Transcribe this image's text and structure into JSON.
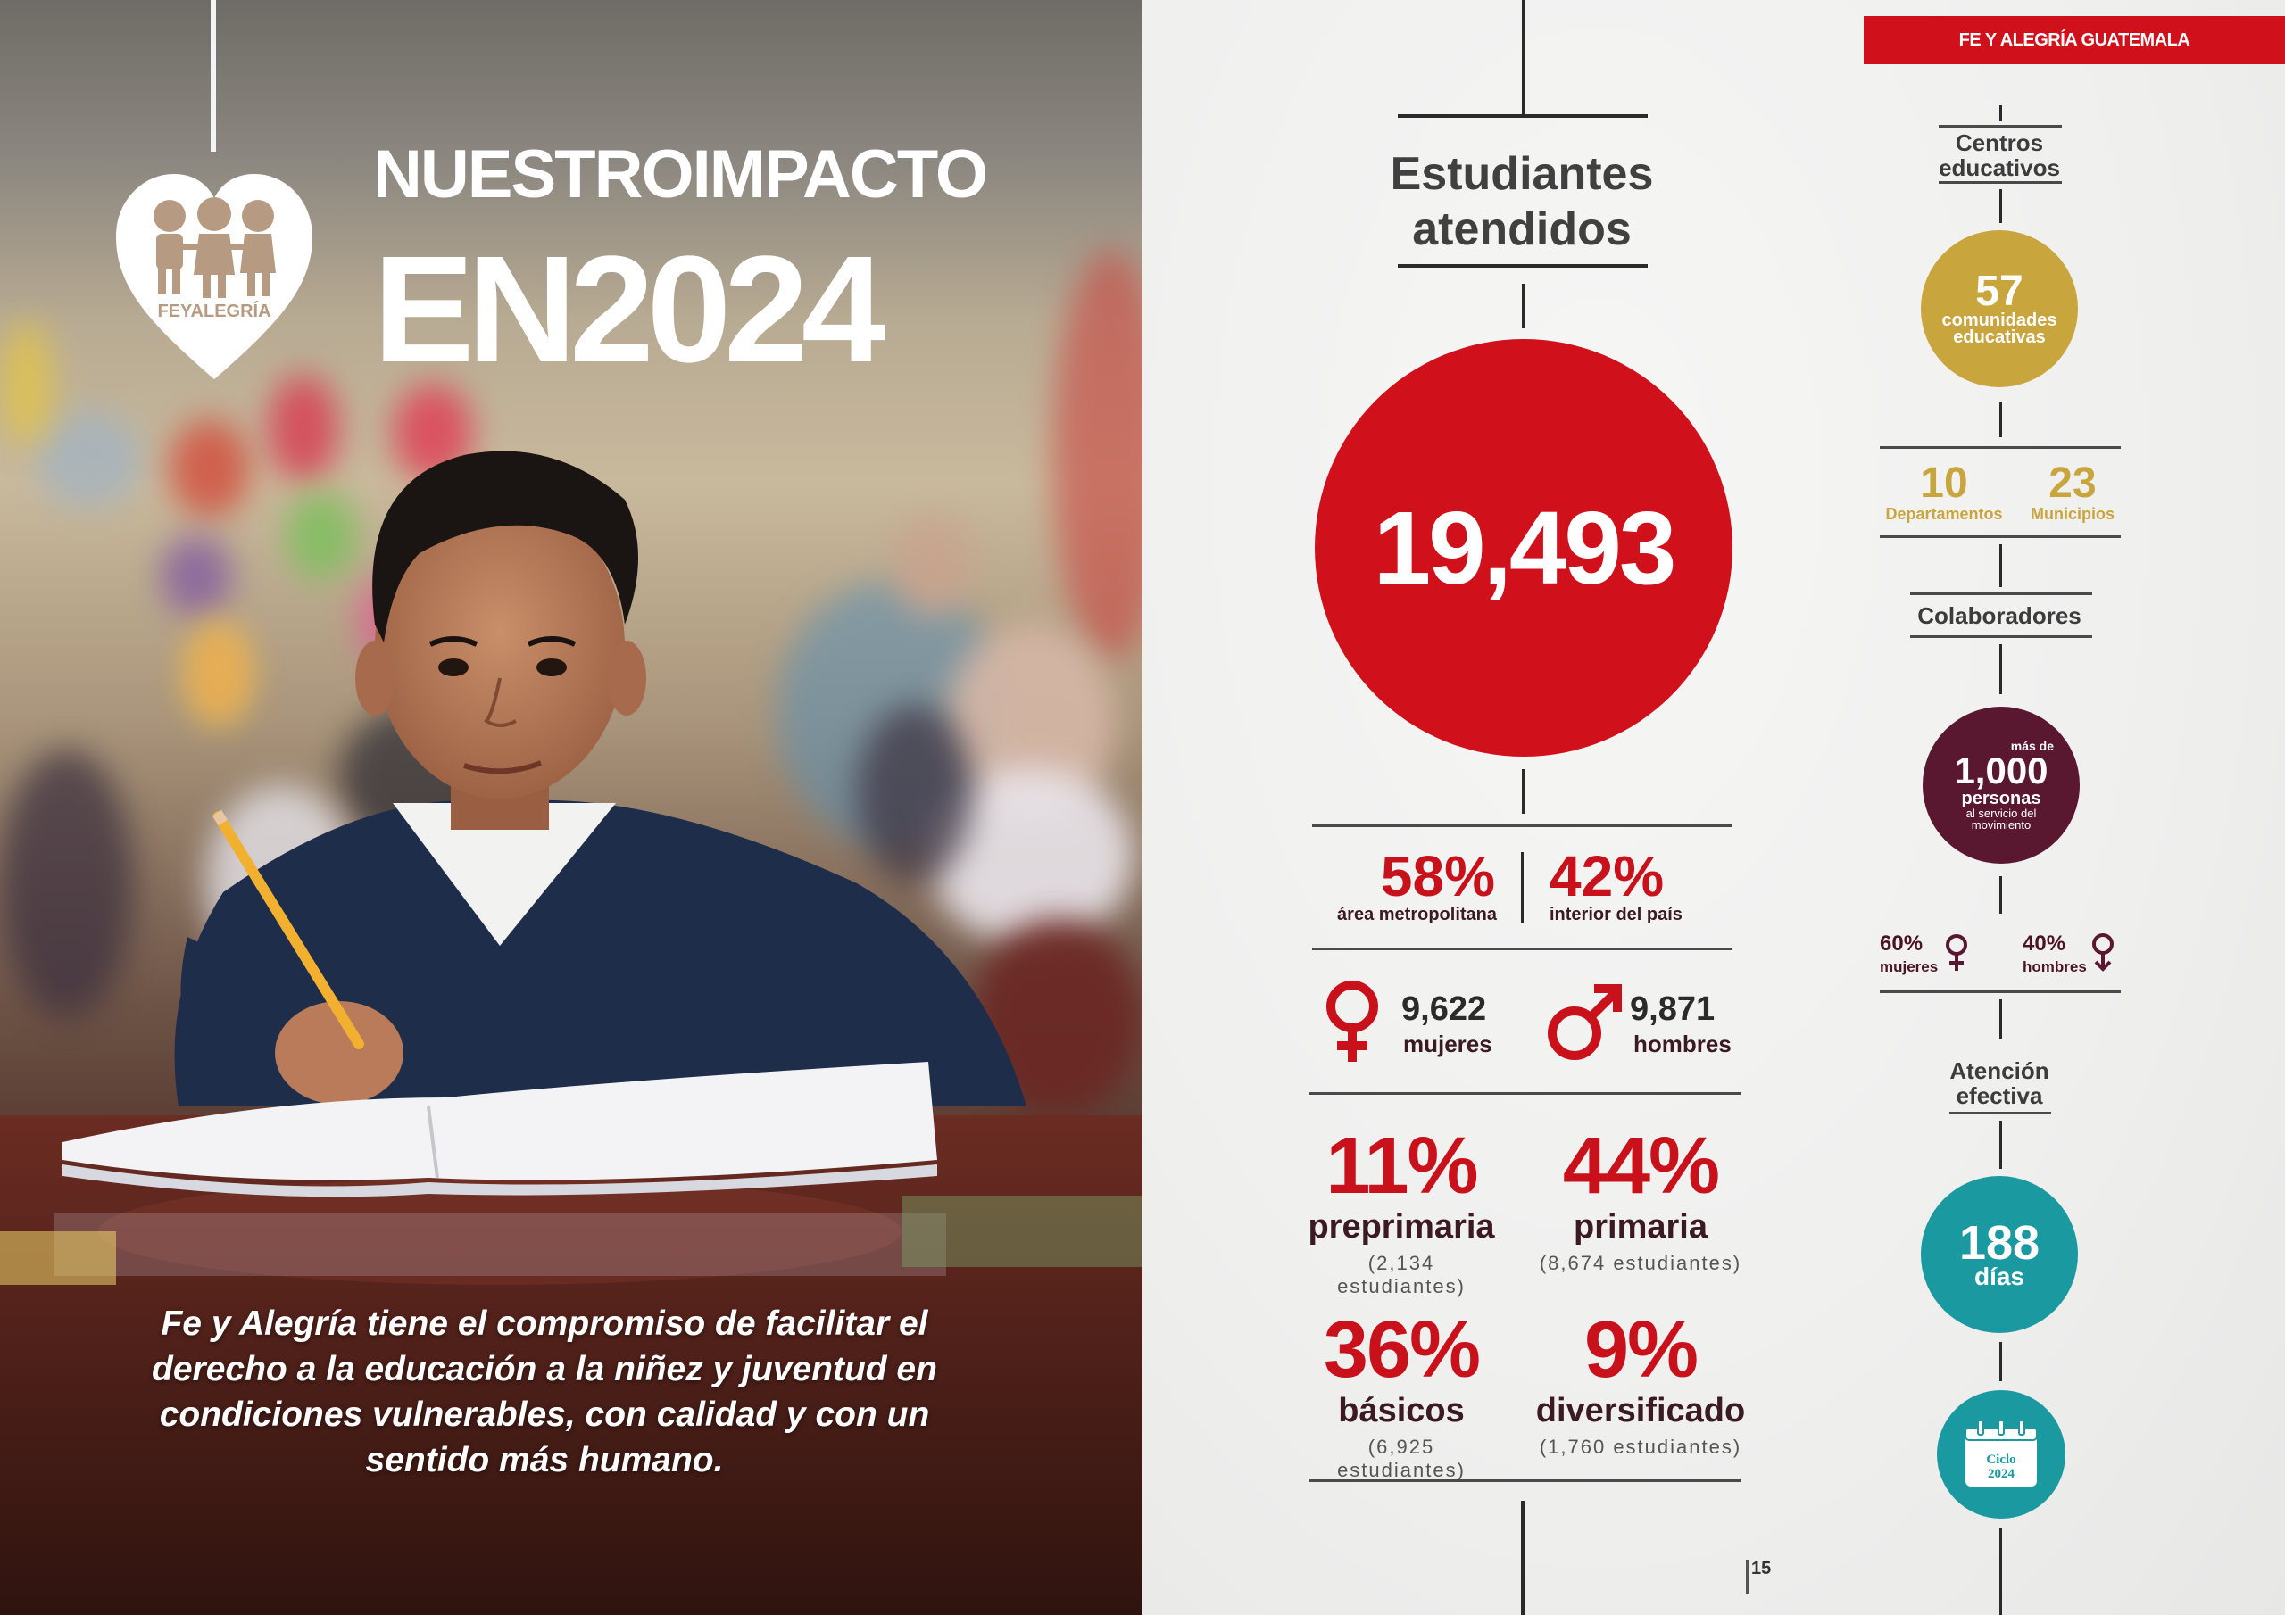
{
  "brand": "FE Y ALEGRÍA GUATEMALA",
  "logo_text": "FEYALEGRÍA",
  "title": {
    "line1": "NUESTROIMPACTO",
    "line2": "EN2024"
  },
  "quote": "Fe y Alegría tiene el compromiso de facilitar el derecho a la educación a la niñez y juventud en condiciones vulnerables, con calidad y con un sentido más humano.",
  "students": {
    "header": [
      "Estudiantes",
      "atendidos"
    ],
    "total": "19,493",
    "metro_pct": "58%",
    "metro_label": "área metropolitana",
    "interior_pct": "42%",
    "interior_label": "interior del país",
    "women_count": "9,622",
    "women_label": "mujeres",
    "men_count": "9,871",
    "men_label": "hombres",
    "levels": [
      {
        "pct": "11%",
        "name": "preprimaria",
        "count": "(2,134 estudiantes)"
      },
      {
        "pct": "44%",
        "name": "primaria",
        "count": "(8,674 estudiantes)"
      },
      {
        "pct": "36%",
        "name": "básicos",
        "count": "(6,925 estudiantes)"
      },
      {
        "pct": "9%",
        "name": "diversificado",
        "count": "(1,760 estudiantes)"
      }
    ]
  },
  "centers": {
    "header": [
      "Centros",
      "educativos"
    ],
    "number": "57",
    "label1": "comunidades",
    "label2": "educativas",
    "departments_num": "10",
    "departments_label": "Departamentos",
    "municipalities_num": "23",
    "municipalities_label": "Municipios"
  },
  "collaborators": {
    "header": "Colaboradores",
    "prefix": "más de",
    "number": "1,000",
    "label": "personas",
    "sub1": "al servicio del",
    "sub2": "movimiento",
    "women_pct": "60%",
    "women_label": "mujeres",
    "men_pct": "40%",
    "men_label": "hombres"
  },
  "attention": {
    "header": [
      "Atención",
      "efectiva"
    ],
    "number": "188",
    "label": "días",
    "cycle_word": "Ciclo",
    "cycle_year": "2024"
  },
  "page_number": "15",
  "colors": {
    "red": "#d0111c",
    "gold": "#c9a53e",
    "maroon": "#5a1830",
    "teal": "#1a9aa0"
  }
}
